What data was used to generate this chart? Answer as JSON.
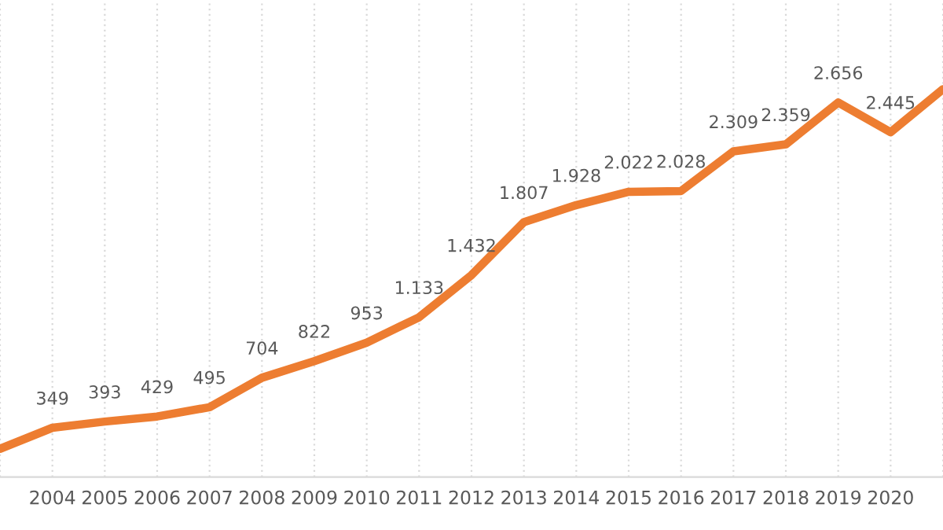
{
  "chart_data": {
    "type": "line",
    "categories": [
      null,
      "2004",
      "2005",
      "2006",
      "2007",
      "2008",
      "2009",
      "2010",
      "2011",
      "2012",
      "2013",
      "2014",
      "2015",
      "2016",
      "2017",
      "2018",
      "2019",
      "2020",
      null
    ],
    "series": [
      {
        "color": "#ed7d31",
        "values": [
          200,
          349,
          393,
          429,
          495,
          704,
          822,
          953,
          1133,
          1432,
          1807,
          1928,
          2022,
          2028,
          2309,
          2359,
          2656,
          2445,
          2750
        ],
        "value_labels": [
          null,
          "349",
          "393",
          "429",
          "495",
          "704",
          "822",
          "953",
          "1.133",
          "1.432",
          "1.807",
          "1.928",
          "2.022",
          "2.028",
          "2.309",
          "2.359",
          "2.656",
          "2.445",
          null
        ]
      }
    ],
    "grid": "x",
    "marker": "none",
    "line_style": "solid",
    "legend": false
  }
}
